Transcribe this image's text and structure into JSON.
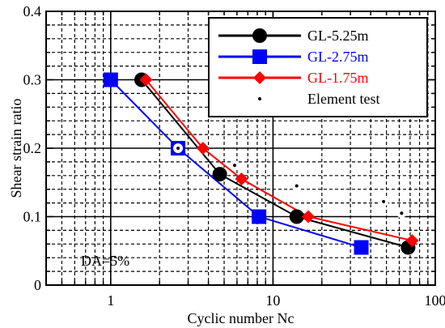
{
  "chart_data": {
    "type": "line",
    "xlabel": "Cyclic number Nc",
    "ylabel": "Shear strain ratio",
    "x_scale": "log",
    "xlim": [
      0.4,
      100
    ],
    "ylim": [
      0,
      0.4
    ],
    "x_ticks": [
      1,
      10,
      100
    ],
    "x_tick_labels": [
      "1",
      "10",
      "100"
    ],
    "y_ticks": [
      0,
      0.1,
      0.2,
      0.3,
      0.4
    ],
    "y_tick_labels": [
      "0",
      "0.1",
      "0.2",
      "0.3",
      "0.4"
    ],
    "grid": true,
    "legend_position": "top-right",
    "annotation": "DA=5%",
    "series": [
      {
        "name": "GL-5.25m",
        "color": "#000000",
        "marker": "circle",
        "x": [
          1.55,
          4.7,
          14.0,
          68.0
        ],
        "y": [
          0.3,
          0.162,
          0.1,
          0.055
        ]
      },
      {
        "name": "GL-2.75m",
        "color": "#0000ff",
        "marker": "square",
        "x": [
          1.0,
          2.6,
          8.2,
          35.0
        ],
        "y": [
          0.3,
          0.2,
          0.1,
          0.055
        ]
      },
      {
        "name": "GL-1.75m",
        "color": "#ff0000",
        "marker": "diamond",
        "x": [
          1.65,
          3.7,
          6.4,
          16.5,
          72.0
        ],
        "y": [
          0.3,
          0.2,
          0.155,
          0.1,
          0.065
        ]
      },
      {
        "name": "Element test",
        "color": "#000000",
        "marker": "dot",
        "x": [
          2.6,
          5.8,
          14.0,
          48.0,
          62.0
        ],
        "y": [
          0.2,
          0.175,
          0.145,
          0.122,
          0.105
        ]
      }
    ]
  }
}
